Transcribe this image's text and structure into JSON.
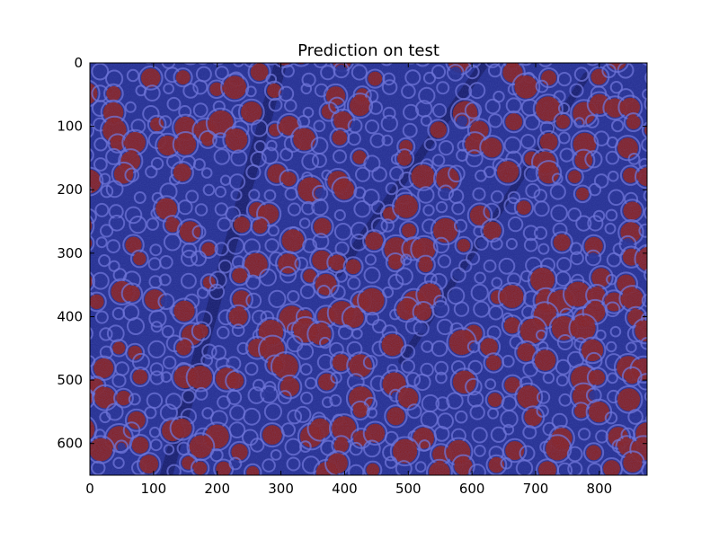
{
  "title": "Prediction on test",
  "colors": {
    "background_class": "#1f2a8c",
    "cell_border": "#6f74d8",
    "foreground_class": "#8b1a12",
    "dark_channel": "#0f145e",
    "frame": "#000000"
  },
  "chart_data": {
    "type": "heatmap",
    "title": "Prediction on test",
    "xlabel": "",
    "ylabel": "",
    "xlim": [
      0,
      875
    ],
    "ylim": [
      650,
      0
    ],
    "y_axis_inverted": true,
    "grid": false,
    "legend": "none",
    "x_ticks": [
      0,
      100,
      200,
      300,
      400,
      500,
      600,
      700,
      800
    ],
    "y_ticks": [
      0,
      100,
      200,
      300,
      400,
      500,
      600
    ],
    "x_tick_labels": [
      "0",
      "100",
      "200",
      "300",
      "400",
      "500",
      "600",
      "700",
      "800"
    ],
    "y_tick_labels": [
      "0",
      "100",
      "200",
      "300",
      "400",
      "500",
      "600"
    ]
  }
}
